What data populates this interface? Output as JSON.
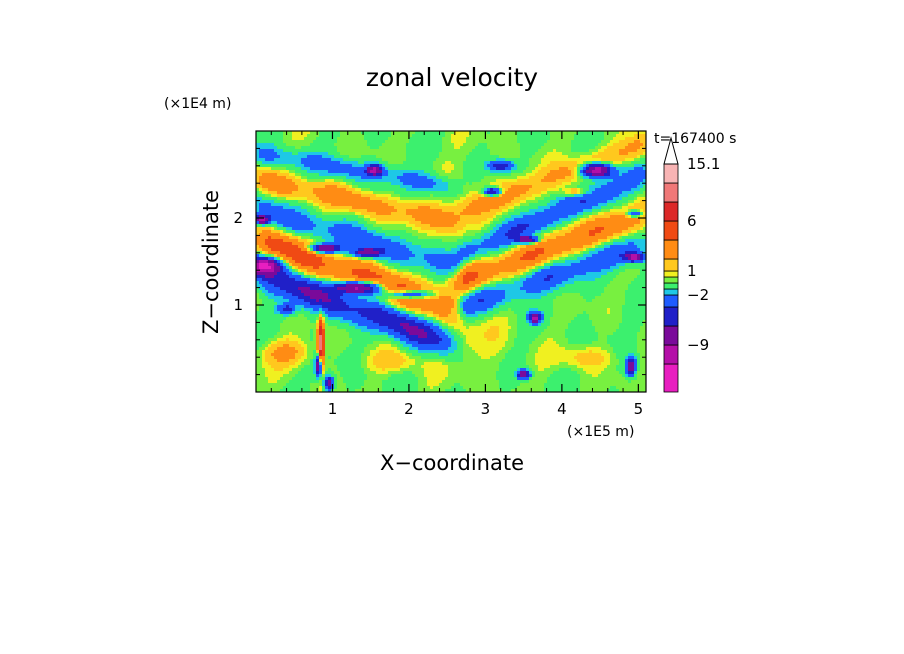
{
  "chart_data": {
    "type": "heatmap",
    "title": "zonal velocity",
    "xlabel": "X−coordinate",
    "ylabel": "Z−coordinate",
    "x_unit": "(×1E5 m)",
    "y_unit": "(×1E4 m)",
    "time_label": "t=167400 s",
    "xlim": [
      0.0,
      5.1
    ],
    "ylim": [
      0.0,
      3.0
    ],
    "x_ticks": [
      {
        "value": 1,
        "label": "1"
      },
      {
        "value": 2,
        "label": "2"
      },
      {
        "value": 3,
        "label": "3"
      },
      {
        "value": 4,
        "label": "4"
      },
      {
        "value": 5,
        "label": "5"
      }
    ],
    "y_ticks": [
      {
        "value": 1,
        "label": "1"
      },
      {
        "value": 2,
        "label": "2"
      }
    ],
    "colorbar": {
      "levels": [
        {
          "max": -12,
          "color": "#e81ec0"
        },
        {
          "max": -9,
          "color": "#b40fa8"
        },
        {
          "max": -6,
          "color": "#7a0a9a"
        },
        {
          "max": -4,
          "color": "#2020c8"
        },
        {
          "max": -2,
          "color": "#1e5cff"
        },
        {
          "max": -1,
          "color": "#1ec8e6"
        },
        {
          "max": 0,
          "color": "#3cf06e"
        },
        {
          "max": 0.5,
          "color": "#78f040"
        },
        {
          "max": 1,
          "color": "#f0f020"
        },
        {
          "max": 2,
          "color": "#ffc81e"
        },
        {
          "max": 4,
          "color": "#ff8c14"
        },
        {
          "max": 6,
          "color": "#f04a14"
        },
        {
          "max": 9,
          "color": "#dc2828"
        },
        {
          "max": 12,
          "color": "#f07878"
        },
        {
          "max": 15.1,
          "color": "#f8b4b4"
        }
      ],
      "labels": [
        {
          "value": 15.1,
          "label": "15.1"
        },
        {
          "value": 6,
          "label": "6"
        },
        {
          "value": 1,
          "label": "1"
        },
        {
          "value": -2,
          "label": "−2"
        },
        {
          "value": -9,
          "label": "−9"
        }
      ],
      "overflow_triangle": "top"
    },
    "features": [
      {
        "kind": "band",
        "x0": 0.0,
        "x1": 2.6,
        "z0": 1.75,
        "z1": 0.95,
        "w": 0.18,
        "amp": 5.5
      },
      {
        "kind": "band",
        "x0": 0.0,
        "x1": 2.6,
        "z0": 1.35,
        "z1": 0.55,
        "w": 0.17,
        "amp": -6.5
      },
      {
        "kind": "band",
        "x0": 0.0,
        "x1": 2.6,
        "z0": 2.1,
        "z1": 1.45,
        "w": 0.15,
        "amp": -3.5
      },
      {
        "kind": "band",
        "x0": 0.0,
        "x1": 2.6,
        "z0": 2.45,
        "z1": 1.95,
        "w": 0.13,
        "amp": 3.5
      },
      {
        "kind": "band",
        "x0": 0.0,
        "x1": 2.6,
        "z0": 2.75,
        "z1": 2.35,
        "w": 0.11,
        "amp": -3.0
      },
      {
        "kind": "band",
        "x0": 2.6,
        "x1": 5.1,
        "z0": 0.95,
        "z1": 1.7,
        "w": 0.16,
        "amp": -4.0
      },
      {
        "kind": "band",
        "x0": 2.6,
        "x1": 5.1,
        "z0": 1.25,
        "z1": 2.05,
        "w": 0.17,
        "amp": 4.5
      },
      {
        "kind": "band",
        "x0": 2.6,
        "x1": 5.1,
        "z0": 1.55,
        "z1": 2.5,
        "w": 0.15,
        "amp": -4.5
      },
      {
        "kind": "band",
        "x0": 2.6,
        "x1": 5.1,
        "z0": 2.05,
        "z1": 2.85,
        "w": 0.14,
        "amp": 3.0
      },
      {
        "kind": "blob",
        "x": 0.1,
        "z": 1.45,
        "rx": 0.22,
        "rz": 0.1,
        "amp": -12.0
      },
      {
        "kind": "blob",
        "x": 1.35,
        "z": 1.2,
        "rx": 0.32,
        "rz": 0.07,
        "amp": -11.0
      },
      {
        "kind": "blob",
        "x": 2.0,
        "z": 1.12,
        "rx": 0.3,
        "rz": 0.05,
        "amp": -8.0
      },
      {
        "kind": "blob",
        "x": 0.9,
        "z": 1.65,
        "rx": 0.2,
        "rz": 0.05,
        "amp": -10.0
      },
      {
        "kind": "blob",
        "x": 1.45,
        "z": 1.6,
        "rx": 0.18,
        "rz": 0.05,
        "amp": -8.0
      },
      {
        "kind": "blob",
        "x": 1.55,
        "z": 2.55,
        "rx": 0.1,
        "rz": 0.06,
        "amp": -9.0
      },
      {
        "kind": "blob",
        "x": 0.08,
        "z": 1.98,
        "rx": 0.08,
        "rz": 0.05,
        "amp": -10.0
      },
      {
        "kind": "blob",
        "x": 4.45,
        "z": 2.55,
        "rx": 0.2,
        "rz": 0.08,
        "amp": -12.0
      },
      {
        "kind": "blob",
        "x": 4.95,
        "z": 1.55,
        "rx": 0.12,
        "rz": 0.05,
        "amp": -9.0
      },
      {
        "kind": "blob",
        "x": 4.95,
        "z": 2.05,
        "rx": 0.1,
        "rz": 0.04,
        "amp": -6.0
      },
      {
        "kind": "blob",
        "x": 3.1,
        "z": 2.3,
        "rx": 0.12,
        "rz": 0.05,
        "amp": -8.0
      },
      {
        "kind": "blob",
        "x": 3.55,
        "z": 1.75,
        "rx": 0.14,
        "rz": 0.04,
        "amp": -8.0
      },
      {
        "kind": "blob",
        "x": 3.65,
        "z": 0.85,
        "rx": 0.08,
        "rz": 0.06,
        "amp": -9.0
      },
      {
        "kind": "blob",
        "x": 3.2,
        "z": 2.6,
        "rx": 0.16,
        "rz": 0.06,
        "amp": -6.0
      },
      {
        "kind": "blob",
        "x": 0.4,
        "z": 0.95,
        "rx": 0.12,
        "rz": 0.06,
        "amp": -5.0
      },
      {
        "kind": "blob",
        "x": 3.5,
        "z": 0.2,
        "rx": 0.08,
        "rz": 0.05,
        "amp": -9.0
      },
      {
        "kind": "blob",
        "x": 4.9,
        "z": 0.3,
        "rx": 0.06,
        "rz": 0.1,
        "amp": -9.0
      },
      {
        "kind": "blob",
        "x": 0.85,
        "z": 0.55,
        "rx": 0.04,
        "rz": 0.28,
        "amp": 11.0
      },
      {
        "kind": "blob",
        "x": 0.82,
        "z": 0.3,
        "rx": 0.04,
        "rz": 0.12,
        "amp": -11.0
      },
      {
        "kind": "blob",
        "x": 0.95,
        "z": 0.1,
        "rx": 0.06,
        "rz": 0.08,
        "amp": -8.0
      },
      {
        "kind": "blob",
        "x": 4.2,
        "z": 2.3,
        "rx": 0.18,
        "rz": 0.05,
        "amp": 3.0
      },
      {
        "kind": "blob",
        "x": 0.4,
        "z": 0.45,
        "rx": 0.3,
        "rz": 0.14,
        "amp": 2.5
      },
      {
        "kind": "blob",
        "x": 1.8,
        "z": 0.35,
        "rx": 0.35,
        "rz": 0.12,
        "amp": 1.5
      },
      {
        "kind": "blob",
        "x": 4.3,
        "z": 0.4,
        "rx": 0.35,
        "rz": 0.12,
        "amp": 1.5
      },
      {
        "kind": "blob",
        "x": 2.8,
        "z": 0.6,
        "rx": 0.5,
        "rz": 0.4,
        "amp": 0.8
      },
      {
        "kind": "blob",
        "x": 2.75,
        "z": 1.9,
        "rx": 0.35,
        "rz": 0.7,
        "amp": 0.7
      }
    ]
  }
}
